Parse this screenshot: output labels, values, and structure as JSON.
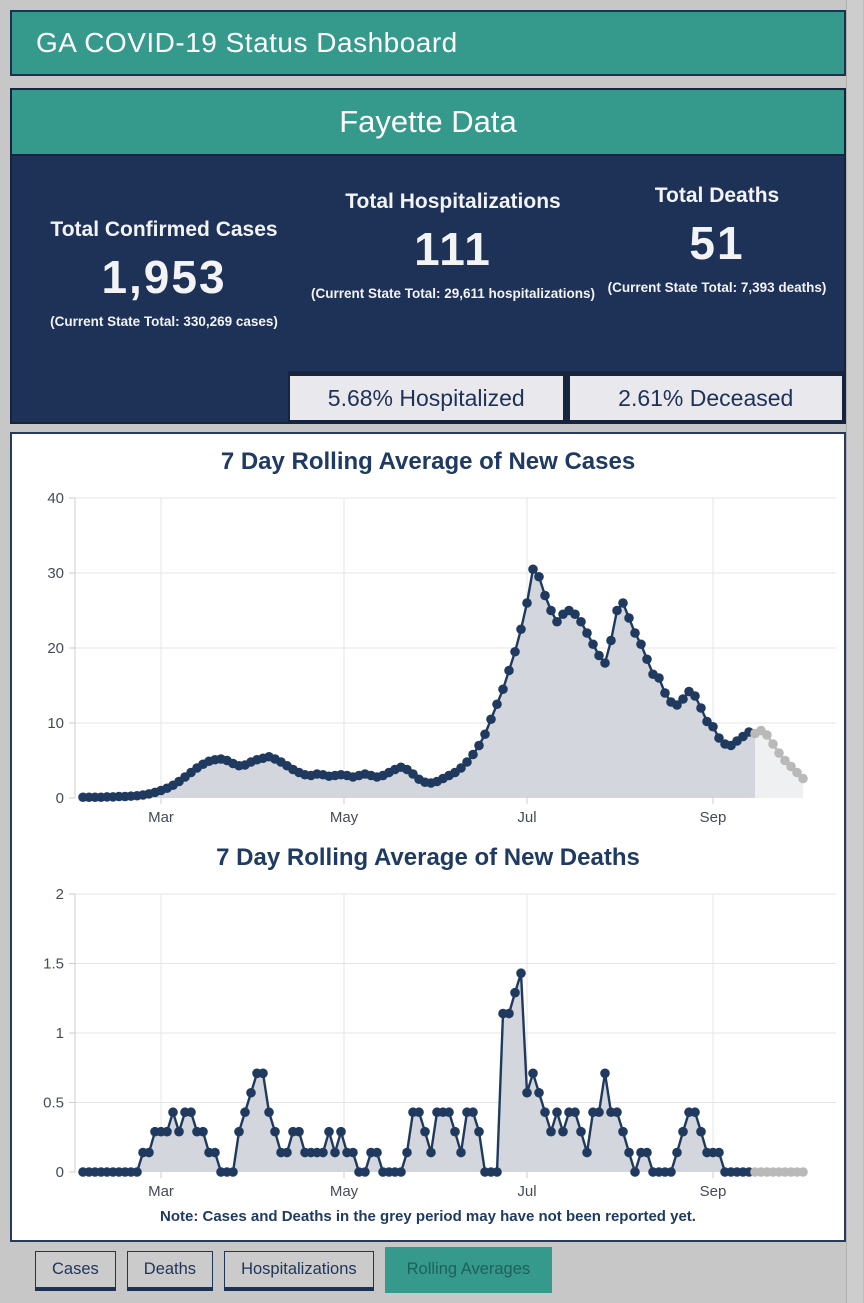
{
  "header": {
    "title": "GA COVID-19 Status Dashboard"
  },
  "county": {
    "title": "Fayette Data",
    "stats": [
      {
        "label": "Total Confirmed Cases",
        "value": "1,953",
        "state_total": "(Current State Total: 330,269 cases)"
      },
      {
        "label": "Total Hospitalizations",
        "value": "111",
        "state_total": "(Current State Total: 29,611 hospitalizations)"
      },
      {
        "label": "Total Deaths",
        "value": "51",
        "state_total": "(Current State Total: 7,393 deaths)"
      }
    ],
    "percent_boxes": [
      "5.68% Hospitalized",
      "2.61% Deceased"
    ]
  },
  "charts_note": "Note: Cases and Deaths in the grey period may have not been reported yet.",
  "tabs": [
    "Cases",
    "Deaths",
    "Hospitalizations",
    "Rolling Averages"
  ],
  "active_tab": "Rolling Averages",
  "colors": {
    "teal": "#35998c",
    "navy_panel": "#1e3156",
    "navy_text": "#1f3a63",
    "stat_box_bg": "#e9e9ed",
    "area_fill": "#d3d6dc",
    "area_fill_grey": "#eef0f2",
    "dot": "#1f3a5e",
    "dot_grey": "#b9b9b9",
    "grid": "#e4e4e4",
    "axis": "#c8cdd2",
    "tick_text": "#454b57",
    "active_tab_text": "#1e6158",
    "page_bg": "#c7c7c7"
  },
  "chart_data": [
    {
      "type": "area",
      "title": "7 Day Rolling Average of New Cases",
      "x_start_date": "Feb 3",
      "x_step_days": 2,
      "x_tick_labels": [
        "Mar",
        "May",
        "Jul",
        "Sep"
      ],
      "x_tick_days": [
        26,
        87,
        148,
        210
      ],
      "ylim": [
        0,
        40
      ],
      "yticks": [
        0,
        10,
        20,
        30,
        40
      ],
      "ytick_labels": [
        "0",
        "10",
        "20",
        "30",
        "40"
      ],
      "grey_from_index": 112,
      "values": [
        0.1,
        0.1,
        0.1,
        0.1,
        0.15,
        0.15,
        0.2,
        0.2,
        0.25,
        0.3,
        0.4,
        0.55,
        0.75,
        1.0,
        1.3,
        1.7,
        2.2,
        2.8,
        3.4,
        4.0,
        4.5,
        4.9,
        5.1,
        5.2,
        5.0,
        4.6,
        4.3,
        4.4,
        4.8,
        5.1,
        5.3,
        5.5,
        5.2,
        4.8,
        4.3,
        3.8,
        3.4,
        3.1,
        3.0,
        3.2,
        3.1,
        2.9,
        3.0,
        3.1,
        3.0,
        2.8,
        3.0,
        3.2,
        3.0,
        2.8,
        3.0,
        3.4,
        3.8,
        4.1,
        3.8,
        3.2,
        2.5,
        2.1,
        2.0,
        2.2,
        2.6,
        3.0,
        3.4,
        4.0,
        4.8,
        5.8,
        7.0,
        8.5,
        10.5,
        12.5,
        14.5,
        17.0,
        19.5,
        22.5,
        26.0,
        30.5,
        29.5,
        27.0,
        25.0,
        23.5,
        24.5,
        25.0,
        24.5,
        23.5,
        22.0,
        20.5,
        19.0,
        18.0,
        21.0,
        25.0,
        26.0,
        24.0,
        22.0,
        20.5,
        18.5,
        16.5,
        16.0,
        14.0,
        12.8,
        12.4,
        13.2,
        14.2,
        13.6,
        12.0,
        10.2,
        9.5,
        8.0,
        7.2,
        7.0,
        7.6,
        8.2,
        8.8,
        8.6,
        9.0,
        8.4,
        7.2,
        6.0,
        5.0,
        4.2,
        3.4,
        2.6
      ]
    },
    {
      "type": "area",
      "title": "7 Day Rolling Average of New Deaths",
      "x_start_date": "Feb 3",
      "x_step_days": 2,
      "x_tick_labels": [
        "Mar",
        "May",
        "Jul",
        "Sep"
      ],
      "x_tick_days": [
        26,
        87,
        148,
        210
      ],
      "ylim": [
        0,
        2
      ],
      "yticks": [
        0,
        0.5,
        1,
        1.5,
        2
      ],
      "ytick_labels": [
        "0",
        "0.5",
        "1",
        "1.5",
        "2"
      ],
      "grey_from_index": 112,
      "values": [
        0,
        0,
        0,
        0,
        0,
        0,
        0,
        0,
        0,
        0,
        0.14,
        0.14,
        0.29,
        0.29,
        0.29,
        0.43,
        0.29,
        0.43,
        0.43,
        0.29,
        0.29,
        0.14,
        0.14,
        0,
        0,
        0,
        0.29,
        0.43,
        0.57,
        0.71,
        0.71,
        0.43,
        0.29,
        0.14,
        0.14,
        0.29,
        0.29,
        0.14,
        0.14,
        0.14,
        0.14,
        0.29,
        0.14,
        0.29,
        0.14,
        0.14,
        0,
        0,
        0.14,
        0.14,
        0,
        0,
        0,
        0,
        0.14,
        0.43,
        0.43,
        0.29,
        0.14,
        0.43,
        0.43,
        0.43,
        0.29,
        0.14,
        0.43,
        0.43,
        0.29,
        0,
        0,
        0,
        1.14,
        1.14,
        1.29,
        1.43,
        0.57,
        0.71,
        0.57,
        0.43,
        0.29,
        0.43,
        0.29,
        0.43,
        0.43,
        0.29,
        0.14,
        0.43,
        0.43,
        0.71,
        0.43,
        0.43,
        0.29,
        0.14,
        0,
        0.14,
        0.14,
        0,
        0,
        0,
        0,
        0.14,
        0.29,
        0.43,
        0.43,
        0.29,
        0.14,
        0.14,
        0.14,
        0,
        0,
        0,
        0,
        0,
        0,
        0,
        0,
        0,
        0,
        0,
        0,
        0,
        0
      ]
    }
  ]
}
